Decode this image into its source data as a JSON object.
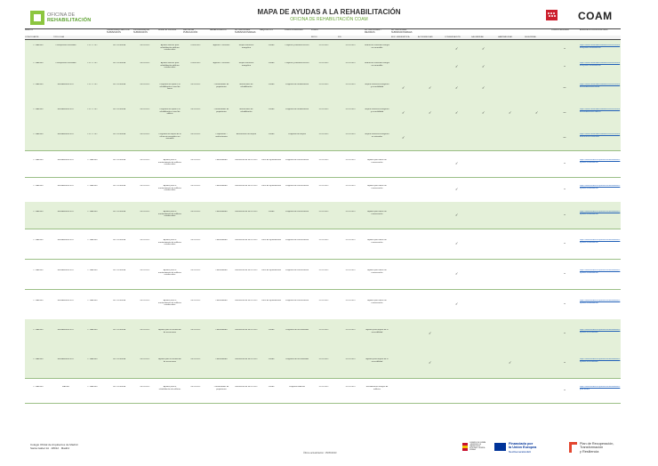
{
  "header": {
    "brand_line1": "OFICINA DE",
    "brand_line2": "REHABILITACIÓN",
    "title": "MAPA DE AYUDAS A LA REHABILITACIÓN",
    "subtitle": "OFICINA DE REHABILITACIÓN COAM",
    "right_logo": "COAM",
    "colors": {
      "accent": "#6aa63a",
      "row_highlight": "#e4f0d9",
      "link": "#1f5fb8",
      "madrid_red": "#cc1f2d"
    }
  },
  "table": {
    "headers": [
      "ÁMBITO",
      "",
      "",
      "ORGANISMO GESTOR SUBVENCIÓN",
      "PROGRAMA DE SUBVENCIÓN",
      "BOLETÍN OFICIAL",
      "FECHA DE PUBLICACIÓN",
      "BENEFICIARIOS",
      "ACTUACIONES SUBVENCIONABLES",
      "REQUISITOS",
      "CUANTÍA MÁXIMA",
      "PLAZO",
      "",
      "ACTUACIONES / MEJORAS",
      "ACTUACIONES SUBVENCIONABLES",
      "",
      "",
      "",
      "",
      "",
      "COMPATIBILIDAD",
      "ENLACE A CONVOCATORIA"
    ],
    "subheaders": [
      "CONVOCANTE",
      "TIPOLOGÍA",
      "",
      "",
      "",
      "",
      "",
      "",
      "",
      "",
      "",
      "INICIO",
      "FIN",
      "",
      "EFIC. ENERGÉTICA",
      "ACCESIBILIDAD",
      "CONSERVACIÓN",
      "SALUBRIDAD",
      "HABITABILIDAD",
      "SEGURIDAD",
      "",
      ""
    ],
    "rows": [
      {
        "a": "C. MADRID",
        "b": "Presupuesto concedido",
        "c": "1.217.778 €",
        "d": "DG VIVIENDA",
        "e": "08/11/2022",
        "f": "Ayudas directas para rehabilitación edificios residenciales",
        "g": "01/06/2022",
        "h": "Agentes / Gestores",
        "i": "Mejora eficiencia energética",
        "j": "Visado",
        "k": "Proyecto y memoria técnica",
        "l": "31/12/2022",
        "m": "31/12/2023",
        "n": "Reducción consumo energía no renovable",
        "checks": [
          0,
          0,
          1,
          1,
          0,
          0
        ],
        "u": "Sí",
        "v": "https://www.comunidad.madrid/servicios/vivienda/ayudas-rehabilitacion"
      },
      {
        "a": "C. MADRID",
        "b": "Presupuesto concedido",
        "c": "1.217.778 €",
        "d": "DG VIVIENDA",
        "e": "08/11/2022",
        "f": "Ayudas directas para rehabilitación edificios residenciales",
        "g": "01/06/2022",
        "h": "Agentes / Gestores",
        "i": "Mejora eficiencia energética",
        "j": "Visado",
        "k": "Proyecto y memoria técnica",
        "l": "31/12/2022",
        "m": "31/12/2023",
        "n": "Reducción consumo energía no renovable",
        "checks": [
          0,
          0,
          1,
          1,
          0,
          0
        ],
        "u": "Sí",
        "v": "https://www.comunidad.madrid/servicios/vivienda/ayudas-rehabilitacion"
      },
      {
        "a": "C. MADRID",
        "b": "Rehabilitación B.D.",
        "c": "1.217.778 €",
        "d": "DG VIVIENDA",
        "e": "08/11/2022",
        "f": "Programa de ayuda a la rehabilitación a nivel de barrio",
        "g": "08/11/2022",
        "h": "Comunidades de propietarios",
        "i": "Actuaciones de rehabilitación",
        "j": "Visado",
        "k": "Programa de rehabilitación",
        "l": "31/12/2022",
        "m": "31/12/2023",
        "n": "Mejora eficiencia energética y accesibilidad",
        "checks": [
          1,
          1,
          1,
          1,
          0,
          0
        ],
        "u": "No",
        "v": "https://www.comunidad.madrid/servicios/vivienda/rehabilitacion-barrio"
      },
      {
        "a": "C. MADRID",
        "b": "Rehabilitación B.D.",
        "c": "1.217.778 €",
        "d": "DG VIVIENDA",
        "e": "08/11/2022",
        "f": "Programa de ayuda a la rehabilitación a nivel de edificio",
        "g": "08/11/2022",
        "h": "Comunidades de propietarios",
        "i": "Actuaciones de rehabilitación",
        "j": "Visado",
        "k": "Programa de rehabilitación",
        "l": "31/12/2022",
        "m": "31/12/2023",
        "n": "Mejora eficiencia energética y accesibilidad",
        "checks": [
          1,
          1,
          1,
          1,
          1,
          1
        ],
        "u": "No",
        "v": "https://www.comunidad.madrid/servicios/vivienda/rehabilitacion-edificio"
      },
      {
        "a": "C. MADRID",
        "b": "Rehabilitación B.D.",
        "c": "1.217.778 €",
        "d": "DG VIVIENDA",
        "e": "08/11/2022",
        "f": "Programa de mejora de la eficiencia energética en viviendas",
        "g": "08/11/2022",
        "h": "Propietarios / usufructuarios",
        "i": "Actuaciones de mejora",
        "j": "Visado",
        "k": "Programa de mejora",
        "l": "31/12/2022",
        "m": "31/12/2023",
        "n": "Mejora eficiencia energética en viviendas",
        "checks": [
          1,
          0,
          0,
          0,
          0,
          0
        ],
        "u": "No",
        "v": "https://www.comunidad.madrid/servicios/vivienda/eficiencia-viviendas"
      },
      {
        "a": "C. MADRID",
        "b": "Rehabilitación B.D.",
        "c": "C. MADRID",
        "d": "DG VIVIENDA",
        "e": "08/11/2022",
        "f": "Ayudas para el mantenimiento de edificios residenciales",
        "g": "08/11/2022",
        "h": "Comunidades",
        "i": "Resolución de 08/11/2022",
        "j": "Local de ayuntamiento",
        "k": "Programa de conservación",
        "l": "31/12/2022",
        "m": "31/12/2023",
        "n": "Ayudas para obras de conservación",
        "checks": [
          0,
          0,
          1,
          0,
          0,
          0
        ],
        "u": "Sí",
        "v": "https://www.madrid.es/portales/munimadrid/es/ayudas-rehabilitacion"
      },
      {
        "a": "C. MADRID",
        "b": "Rehabilitación B.D.",
        "c": "C. MADRID",
        "d": "DG VIVIENDA",
        "e": "08/11/2022",
        "f": "Ayudas para el mantenimiento de edificios residenciales",
        "g": "08/11/2022",
        "h": "Comunidades",
        "i": "Resolución de 08/11/2022",
        "j": "Local de ayuntamiento",
        "k": "Programa de conservación",
        "l": "31/12/2022",
        "m": "31/12/2023",
        "n": "Ayudas para obras de conservación",
        "checks": [
          0,
          0,
          1,
          0,
          0,
          0
        ],
        "u": "Sí",
        "v": "https://www.madrid.es/portales/munimadrid/es/ayudas-rehabilitacion"
      },
      {
        "a": "C. MADRID",
        "b": "Rehabilitación B.D.",
        "c": "C. MADRID",
        "d": "DG VIVIENDA",
        "e": "08/11/2022",
        "f": "Ayudas para el mantenimiento de edificios residenciales",
        "g": "08/11/2022",
        "h": "Comunidades",
        "i": "Resolución de 08/11/2022",
        "j": "Visado",
        "k": "Programa de conservación",
        "l": "31/12/2022",
        "m": "31/12/2023",
        "n": "Ayudas para obras de conservación",
        "checks": [
          0,
          0,
          1,
          0,
          0,
          0
        ],
        "u": "Sí",
        "v": "https://www.madrid.es/portales/munimadrid/es/ayudas-rehabilitacion"
      },
      {
        "a": "C. MADRID",
        "b": "Rehabilitación B.D.",
        "c": "C. MADRID",
        "d": "DG VIVIENDA",
        "e": "08/11/2022",
        "f": "Ayudas para el mantenimiento de edificios residenciales",
        "g": "08/11/2022",
        "h": "Comunidades",
        "i": "Resolución de 08/11/2022",
        "j": "Local de ayuntamiento",
        "k": "Programa de conservación",
        "l": "31/12/2022",
        "m": "31/12/2023",
        "n": "Ayudas para obras de conservación",
        "checks": [
          0,
          0,
          1,
          0,
          0,
          0
        ],
        "u": "Sí",
        "v": "https://www.madrid.es/portales/munimadrid/es/ayudas-rehabilitacion"
      },
      {
        "a": "C. MADRID",
        "b": "Rehabilitación B.D.",
        "c": "C. MADRID",
        "d": "DG VIVIENDA",
        "e": "08/11/2022",
        "f": "Ayudas para el mantenimiento de edificios residenciales",
        "g": "08/11/2022",
        "h": "Comunidades",
        "i": "Resolución de 08/11/2022",
        "j": "Local de ayuntamiento",
        "k": "Programa de conservación",
        "l": "31/12/2022",
        "m": "31/12/2023",
        "n": "Ayudas para obras de conservación",
        "checks": [
          0,
          0,
          1,
          0,
          0,
          0
        ],
        "u": "Sí",
        "v": "https://www.madrid.es/portales/munimadrid/es/ayudas-rehabilitacion"
      },
      {
        "a": "C. MADRID",
        "b": "Rehabilitación B.D.",
        "c": "C. MADRID",
        "d": "DG VIVIENDA",
        "e": "08/11/2022",
        "f": "Ayudas para el mantenimiento de edificios residenciales",
        "g": "08/11/2022",
        "h": "Comunidades",
        "i": "Resolución de 08/11/2022",
        "j": "Local de ayuntamiento",
        "k": "Programa de conservación",
        "l": "31/12/2022",
        "m": "31/12/2023",
        "n": "Ayudas para obras de conservación",
        "checks": [
          0,
          0,
          1,
          0,
          0,
          0
        ],
        "u": "Sí",
        "v": "https://www.madrid.es/portales/munimadrid/es/ayudas-rehabilitacion"
      },
      {
        "a": "C. MADRID",
        "b": "Rehabilitación B.D.",
        "c": "C. MADRID",
        "d": "DG VIVIENDA",
        "e": "08/11/2022",
        "f": "Ayudas para la instalación de ascensores",
        "g": "08/11/2022",
        "h": "Comunidades",
        "i": "Resolución de 08/11/2022",
        "j": "Visado",
        "k": "Programa de accesibilidad",
        "l": "31/12/2022",
        "m": "31/12/2023",
        "n": "Ayudas para mejora de la accesibilidad",
        "checks": [
          0,
          1,
          0,
          0,
          0,
          0
        ],
        "u": "Sí",
        "v": "https://www.madrid.es/portales/munimadrid/es/ayudas-accesibilidad"
      },
      {
        "a": "C. MADRID",
        "b": "Rehabilitación B.D.",
        "c": "C. MADRID",
        "d": "DG VIVIENDA",
        "e": "08/11/2022",
        "f": "Ayudas para la instalación de ascensores",
        "g": "08/11/2022",
        "h": "Comunidades",
        "i": "Resolución de 08/11/2022",
        "j": "Visado",
        "k": "Programa de accesibilidad",
        "l": "31/12/2022",
        "m": "31/12/2023",
        "n": "Ayudas para mejora de la accesibilidad",
        "checks": [
          0,
          1,
          0,
          0,
          1,
          0
        ],
        "u": "Sí",
        "v": "https://www.madrid.es/portales/munimadrid/es/ayudas-accesibilidad"
      },
      {
        "a": "C. MADRID",
        "b": "MADRE",
        "c": "C. MADRID",
        "d": "DG VIVIENDA",
        "e": "08/11/2022",
        "f": "Ayudas para la rehabilitación de edificios",
        "g": "08/11/2022",
        "h": "Comunidades de propietarios",
        "i": "Resolución de 08/11/2022",
        "j": "Visado",
        "k": "Programa MADRE",
        "l": "31/12/2022",
        "m": "31/12/2023",
        "n": "Rehabilitación integral de edificios",
        "checks": [
          0,
          0,
          0,
          0,
          0,
          0
        ],
        "u": "Sí",
        "v": "https://www.madrid.es/portales/munimadrid/es/plan-madre"
      }
    ]
  },
  "footer": {
    "org_line1": "Colegio Oficial de Arquitectos de Madrid",
    "org_line2": "Santa Isabel 1A · 28012 · Madrid",
    "mid_text": "Última actualización: 15/05/2023",
    "eu_line1": "Financiado por",
    "eu_line2": "la Unión Europea",
    "eu_line3": "NextGenerationEU",
    "prtr_line1": "Plan de Recuperación,",
    "prtr_line2": "Transformación",
    "prtr_line3": "y Resiliencia",
    "ministry": "GOBIERNO DE ESPAÑA · MINISTERIO DE TRANSPORTES, MOVILIDAD Y AGENDA URBANA"
  }
}
